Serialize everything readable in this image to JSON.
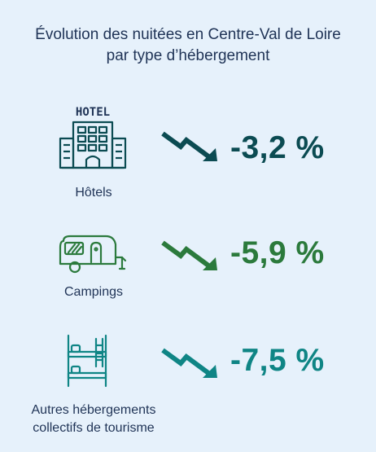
{
  "title": {
    "line1": "Évolution des nuitées en Centre-Val de Loire",
    "line2": "par type d’hébergement"
  },
  "colors": {
    "background": "#e6f1fb",
    "text": "#1f3356",
    "hotels": "#0b4b52",
    "campings": "#2b7a3c",
    "collectifs": "#0f8585"
  },
  "items": [
    {
      "icon": "hotel-icon",
      "sign_text": "HOTEL",
      "label": "Hôtels",
      "value": "-3,2 %"
    },
    {
      "icon": "caravan-icon",
      "label": "Campings",
      "value": "-5,9 %"
    },
    {
      "icon": "bunk-bed-icon",
      "label_line1": "Autres hébergements",
      "label_line2": "collectifs de tourisme",
      "value": "-7,5 %"
    }
  ]
}
